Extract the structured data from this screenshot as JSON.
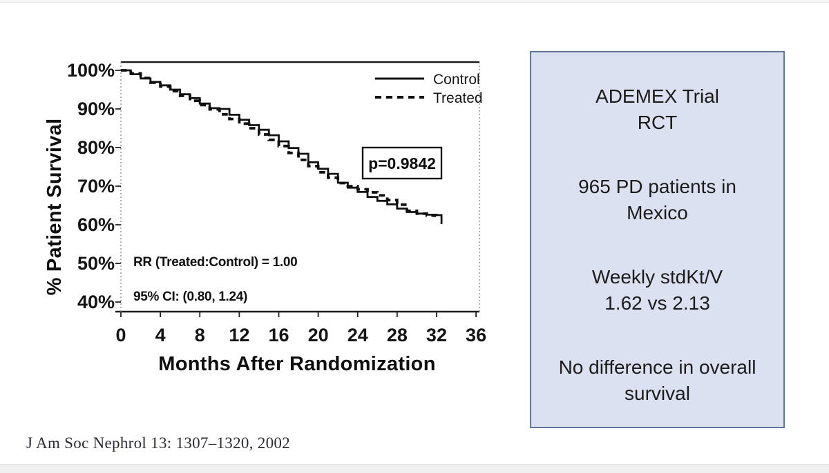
{
  "slide": {
    "citation": "J Am Soc Nephrol 13: 1307–1320, 2002"
  },
  "info_panel": {
    "bg_color": "#dbe1f1",
    "border_color": "#65749b",
    "lines": [
      "ADEMEX Trial",
      "RCT",
      "",
      "965 PD patients in",
      "Mexico",
      "",
      "Weekly stdKt/V",
      "1.62 vs 2.13",
      "",
      "No difference in overall",
      "survival"
    ]
  },
  "chart_data": {
    "type": "line",
    "subtype": "kaplan-meier-step",
    "title": "",
    "xlabel": "Months After Randomization",
    "ylabel": "% Patient Survival",
    "x_ticks": [
      "0",
      "4",
      "8",
      "12",
      "16",
      "20",
      "24",
      "28",
      "32",
      "36"
    ],
    "y_ticks": [
      "100%",
      "90%",
      "80%",
      "70%",
      "60%",
      "50%",
      "40%"
    ],
    "xlim": [
      0,
      36.5
    ],
    "ylim": [
      40,
      100
    ],
    "grid": false,
    "legend_position": "top-right-inside",
    "annotations": {
      "p_value": "p=0.9842",
      "rr_line": "RR (Treated:Control) = 1.00",
      "ci_line": "95% CI: (0.80, 1.24)"
    },
    "series": [
      {
        "name": "Control",
        "line_style": "solid",
        "color": "#101010",
        "points": [
          [
            0,
            100
          ],
          [
            1,
            99
          ],
          [
            2,
            97.9
          ],
          [
            3,
            97
          ],
          [
            4,
            96.1
          ],
          [
            5,
            95
          ],
          [
            6,
            93.8
          ],
          [
            7,
            92.8
          ],
          [
            8,
            91.4
          ],
          [
            9,
            90.2
          ],
          [
            10,
            90
          ],
          [
            11,
            88.5
          ],
          [
            12,
            87.2
          ],
          [
            13,
            85.8
          ],
          [
            14,
            84.6
          ],
          [
            15,
            83.2
          ],
          [
            16,
            81.6
          ],
          [
            17,
            79.9
          ],
          [
            18,
            78.4
          ],
          [
            19,
            76.2
          ],
          [
            20,
            74.5
          ],
          [
            21,
            73.2
          ],
          [
            22,
            70.9
          ],
          [
            23,
            69.6
          ],
          [
            24,
            68.5
          ],
          [
            25,
            67.2
          ],
          [
            26,
            66.2
          ],
          [
            27,
            65.3
          ],
          [
            28,
            64.2
          ],
          [
            29,
            63.3
          ],
          [
            30,
            62.9
          ],
          [
            31,
            62.6
          ],
          [
            32,
            62.5
          ],
          [
            32.4,
            62.5
          ],
          [
            32.5,
            60.2
          ]
        ]
      },
      {
        "name": "Treated",
        "line_style": "dashed",
        "color": "#101010",
        "points": [
          [
            0,
            100
          ],
          [
            1,
            99.2
          ],
          [
            2,
            98
          ],
          [
            3,
            96.8
          ],
          [
            4,
            95.8
          ],
          [
            5,
            94.6
          ],
          [
            6,
            93.4
          ],
          [
            7,
            92.1
          ],
          [
            8,
            91
          ],
          [
            9,
            89.9
          ],
          [
            10,
            88.6
          ],
          [
            11,
            87.4
          ],
          [
            12,
            86.2
          ],
          [
            13,
            85
          ],
          [
            14,
            83.4
          ],
          [
            15,
            82
          ],
          [
            16,
            80.4
          ],
          [
            17,
            78.6
          ],
          [
            18,
            76.8
          ],
          [
            19,
            75.2
          ],
          [
            20,
            73.6
          ],
          [
            21,
            72.2
          ],
          [
            22,
            70.8
          ],
          [
            23,
            70
          ],
          [
            24,
            69.2
          ],
          [
            25,
            68.4
          ],
          [
            26,
            67.6
          ],
          [
            27,
            66.4
          ],
          [
            28,
            65.2
          ],
          [
            29,
            63.6
          ],
          [
            30,
            62.9
          ],
          [
            31,
            62.4
          ],
          [
            31.8,
            62
          ]
        ]
      }
    ]
  }
}
